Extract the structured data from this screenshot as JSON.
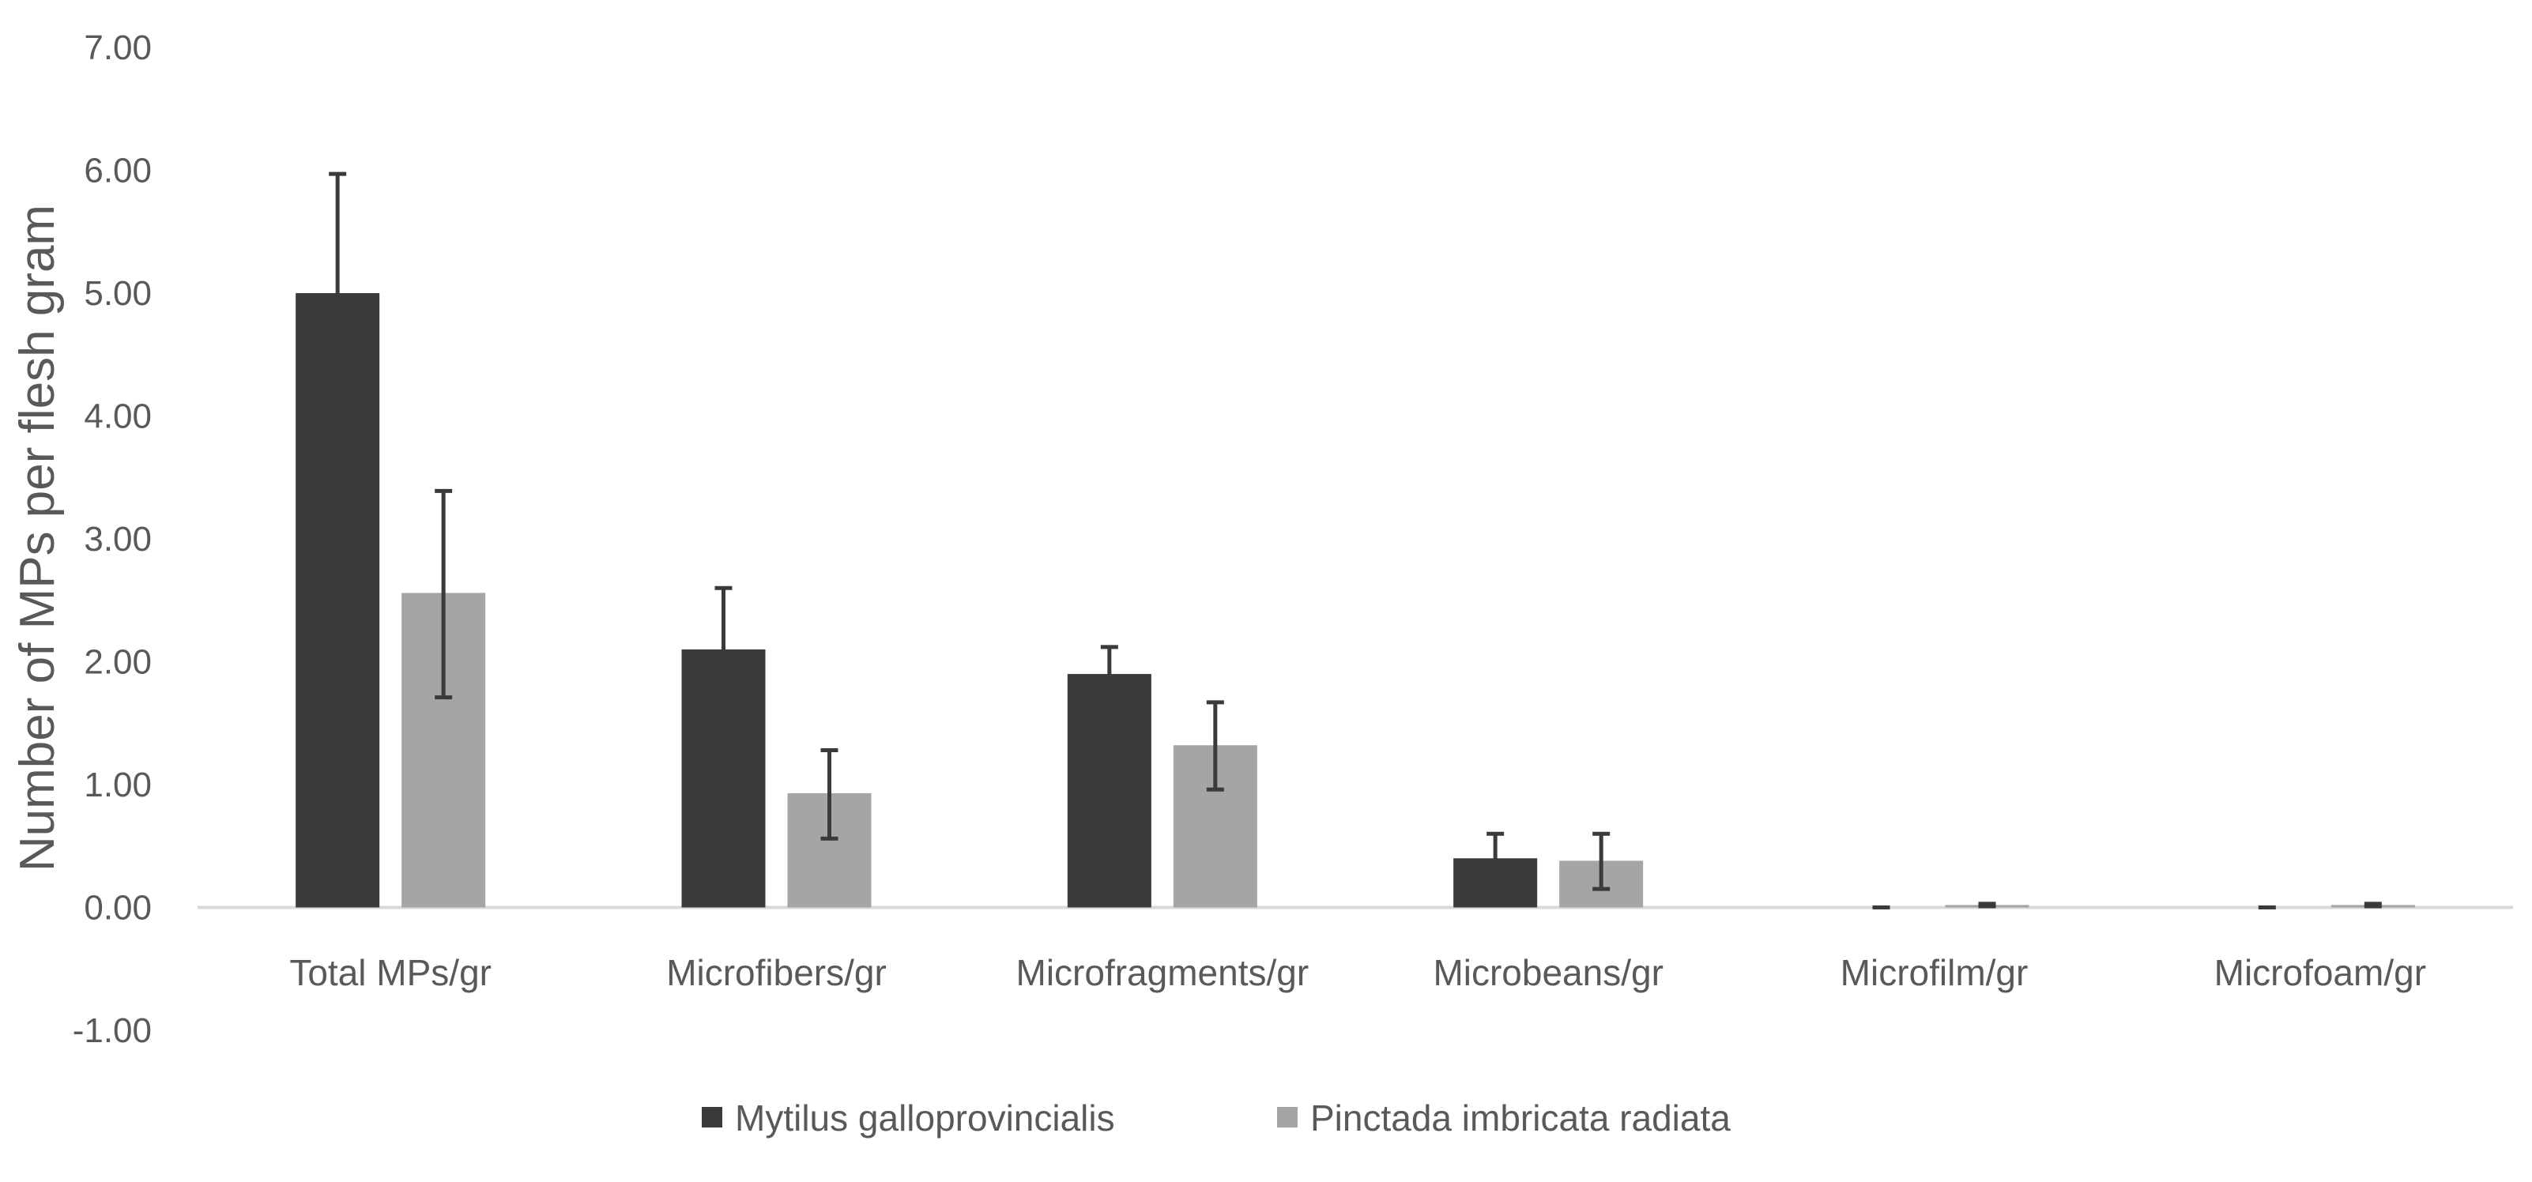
{
  "chart_data": {
    "type": "bar",
    "title": "",
    "xlabel": "",
    "ylabel": "Number of MPs per flesh gram",
    "ylim": [
      -1,
      7
    ],
    "ytick_step": 1,
    "ytick_labels": [
      "-1.00",
      "0.00",
      "1.00",
      "2.00",
      "3.00",
      "4.00",
      "5.00",
      "6.00",
      "7.00"
    ],
    "grid": false,
    "legend_position": "bottom",
    "categories": [
      "Total MPs/gr",
      "Microfibers/gr",
      "Microfragments/gr",
      "Microbeans/gr",
      "Microfilm/gr",
      "Microfoam/gr"
    ],
    "series": [
      {
        "name": "Mytilus galloprovincialis",
        "color": "#3a3a3a",
        "values": [
          5.0,
          2.1,
          1.9,
          0.4,
          0.0,
          0.0
        ],
        "error_low": [
          4.05,
          1.62,
          1.67,
          0.22,
          0.0,
          0.0
        ],
        "error_high": [
          5.97,
          2.6,
          2.12,
          0.6,
          0.0,
          0.0
        ]
      },
      {
        "name": "Pinctada imbricata radiata",
        "color": "#a5a5a5",
        "values": [
          2.56,
          0.93,
          1.32,
          0.38,
          0.02,
          0.02
        ],
        "error_low": [
          1.71,
          0.56,
          0.96,
          0.15,
          0.01,
          0.01
        ],
        "error_high": [
          3.39,
          1.28,
          1.67,
          0.6,
          0.03,
          0.03
        ]
      }
    ]
  }
}
